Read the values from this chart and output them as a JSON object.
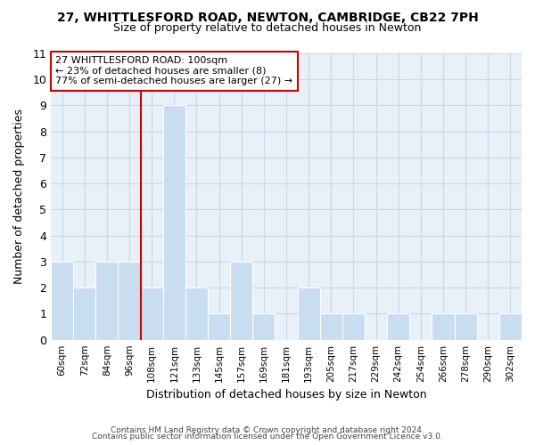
{
  "title": "27, WHITTLESFORD ROAD, NEWTON, CAMBRIDGE, CB22 7PH",
  "subtitle": "Size of property relative to detached houses in Newton",
  "xlabel": "Distribution of detached houses by size in Newton",
  "ylabel": "Number of detached properties",
  "bar_labels": [
    "60sqm",
    "72sqm",
    "84sqm",
    "96sqm",
    "108sqm",
    "121sqm",
    "133sqm",
    "145sqm",
    "157sqm",
    "169sqm",
    "181sqm",
    "193sqm",
    "205sqm",
    "217sqm",
    "229sqm",
    "242sqm",
    "254sqm",
    "266sqm",
    "278sqm",
    "290sqm",
    "302sqm"
  ],
  "bar_values": [
    3,
    2,
    3,
    3,
    2,
    9,
    2,
    1,
    3,
    1,
    0,
    2,
    1,
    1,
    0,
    1,
    0,
    1,
    1,
    0,
    1
  ],
  "bar_color": "#c9ddf0",
  "bar_edge_color": "#ffffff",
  "grid_color": "#c8d8e8",
  "plot_bg_color": "#e8f0f8",
  "background_color": "#ffffff",
  "annotation_box_text": "27 WHITTLESFORD ROAD: 100sqm\n← 23% of detached houses are smaller (8)\n77% of semi-detached houses are larger (27) →",
  "vline_color": "#cc0000",
  "ylim": [
    0,
    11
  ],
  "yticks": [
    0,
    1,
    2,
    3,
    4,
    5,
    6,
    7,
    8,
    9,
    10,
    11
  ],
  "footer_line1": "Contains HM Land Registry data © Crown copyright and database right 2024.",
  "footer_line2": "Contains public sector information licensed under the Open Government Licence v3.0."
}
